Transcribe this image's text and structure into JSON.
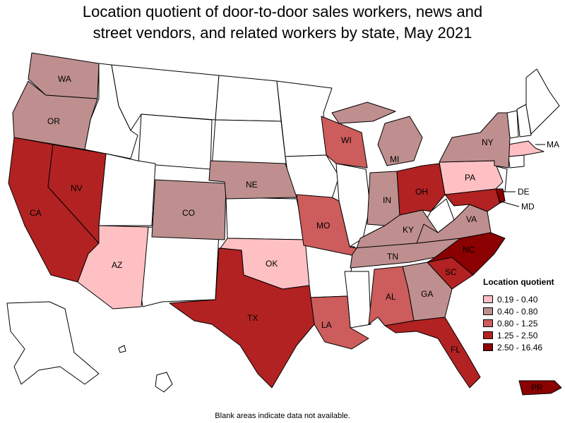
{
  "title": {
    "line1": "Location quotient of door-to-door sales workers, news and",
    "line2": "street vendors, and related workers by state, May 2021"
  },
  "legend": {
    "title": "Location quotient",
    "items": [
      {
        "label": "0.19 - 0.40",
        "color": "#ffc0c4"
      },
      {
        "label": "0.40 - 0.80",
        "color": "#bf8f8f"
      },
      {
        "label": "0.80 - 1.25",
        "color": "#cd5c5c"
      },
      {
        "label": "1.25 - 2.50",
        "color": "#b22222"
      },
      {
        "label": "2.50 - 16.46",
        "color": "#8b0000"
      }
    ]
  },
  "note": "Blank areas indicate data not available.",
  "state_labels": {
    "WA": "WA",
    "OR": "OR",
    "CA": "CA",
    "NV": "NV",
    "AZ": "AZ",
    "CO": "CO",
    "NE": "NE",
    "OK": "OK",
    "TX": "TX",
    "MO": "MO",
    "LA": "LA",
    "WI": "WI",
    "MI": "MI",
    "IN": "IN",
    "OH": "OH",
    "KY": "KY",
    "TN": "TN",
    "AL": "AL",
    "GA": "GA",
    "FL": "FL",
    "SC": "SC",
    "NC": "NC",
    "VA": "VA",
    "PA": "PA",
    "NY": "NY",
    "MA": "MA",
    "DE": "DE",
    "MD": "MD",
    "PR": "PR"
  }
}
